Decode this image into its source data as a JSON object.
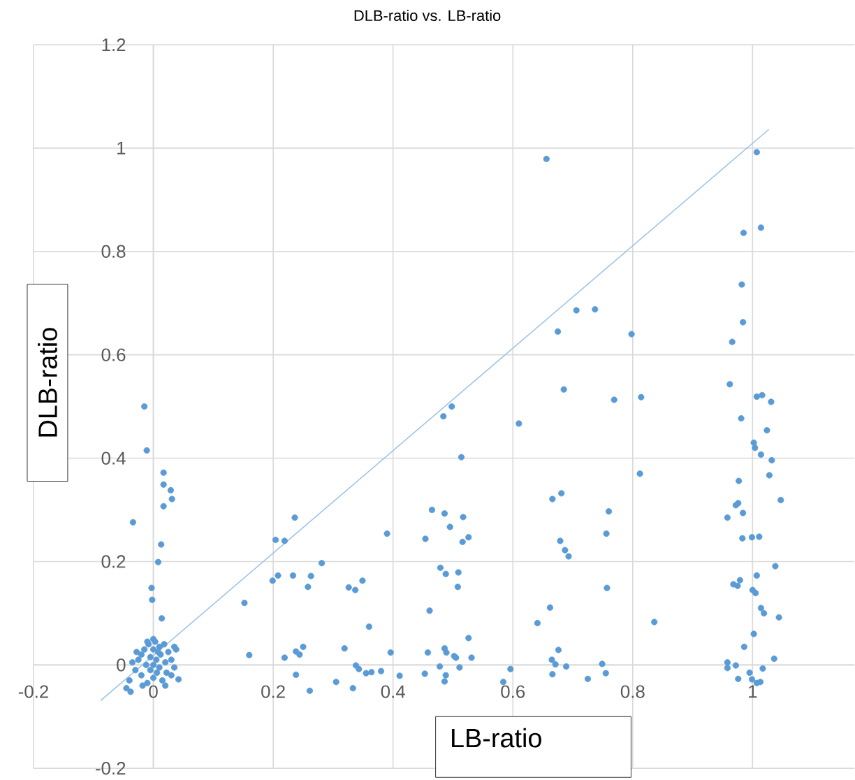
{
  "chart_data": {
    "type": "scatter",
    "title": "DLB-ratio vs. LB-ratio",
    "xlabel": "LB-ratio",
    "ylabel": "DLB-ratio",
    "xlim": [
      -0.2,
      1.17
    ],
    "ylim": [
      -0.2,
      1.2
    ],
    "xticks": [
      -0.2,
      0,
      0.2,
      0.4,
      0.6,
      0.8,
      1
    ],
    "yticks": [
      -0.2,
      0,
      0.2,
      0.4,
      0.6,
      0.8,
      1,
      1.2
    ],
    "grid": true,
    "series": [
      {
        "marker": "circle",
        "color": "#5b9bd5",
        "x": [
          -0.04,
          -0.045,
          -0.038,
          -0.03,
          -0.025,
          -0.02,
          -0.02,
          -0.015,
          -0.012,
          -0.01,
          -0.008,
          -0.005,
          -0.005,
          0.0,
          0.0,
          0.0,
          0.003,
          0.005,
          0.006,
          0.01,
          0.01,
          0.012,
          0.015,
          0.018,
          0.02,
          0.022,
          0.025,
          0.03,
          0.03,
          0.035,
          0.038,
          0.042,
          -0.035,
          -0.028,
          0.008,
          -0.018,
          0.02,
          0.0,
          -0.01,
          0.035,
          -0.015,
          -0.011,
          -0.034,
          0.017,
          0.017,
          0.029,
          0.031,
          0.017,
          0.013,
          0.008,
          -0.003,
          -0.002,
          0.014,
          0.152,
          0.16,
          0.199,
          0.208,
          0.204,
          0.219,
          0.236,
          0.219,
          0.233,
          0.263,
          0.258,
          0.281,
          0.238,
          0.244,
          0.25,
          0.238,
          0.261,
          0.305,
          0.319,
          0.326,
          0.337,
          0.333,
          0.39,
          0.349,
          0.36,
          0.338,
          0.343,
          0.355,
          0.364,
          0.38,
          0.396,
          0.411,
          0.465,
          0.486,
          0.495,
          0.517,
          0.454,
          0.516,
          0.526,
          0.479,
          0.488,
          0.509,
          0.508,
          0.461,
          0.526,
          0.458,
          0.486,
          0.489,
          0.502,
          0.505,
          0.531,
          0.478,
          0.511,
          0.453,
          0.488,
          0.486,
          0.584,
          0.596,
          0.484,
          0.498,
          0.514,
          0.61,
          0.666,
          0.681,
          0.679,
          0.687,
          0.693,
          0.662,
          0.641,
          0.676,
          0.665,
          0.671,
          0.689,
          0.666,
          0.769,
          0.814,
          0.76,
          0.756,
          0.812,
          0.757,
          0.836,
          0.749,
          0.725,
          0.755,
          0.656,
          0.706,
          0.737,
          0.675,
          0.798,
          0.685,
          0.962,
          0.981,
          1.007,
          1.016,
          1.031,
          1.024,
          1.002,
          1.004,
          1.014,
          1.032,
          1.028,
          0.977,
          1.047,
          0.972,
          0.976,
          0.958,
          0.984,
          0.983,
          0.999,
          1.011,
          1.038,
          1.007,
          0.968,
          0.975,
          0.979,
          1.0,
          1.005,
          1.014,
          1.019,
          1.044,
          1.002,
          0.986,
          1.036,
          0.958,
          0.972,
          0.958,
          1.017,
          0.995,
          0.976,
          0.999,
          1.007,
          1.013,
          1.007,
          0.985,
          1.014,
          0.982,
          0.984,
          0.966
        ],
        "values": [
          -0.03,
          -0.045,
          -0.052,
          -0.01,
          0.01,
          0.02,
          -0.02,
          0.03,
          0.0,
          -0.035,
          0.04,
          0.015,
          -0.01,
          0.03,
          0.0,
          -0.025,
          0.045,
          0.01,
          -0.015,
          0.035,
          -0.005,
          0.02,
          -0.03,
          0.04,
          0.005,
          -0.015,
          0.025,
          0.01,
          -0.02,
          0.035,
          0.03,
          -0.028,
          0.005,
          0.025,
          0.025,
          -0.04,
          -0.04,
          0.05,
          0.045,
          -0.005,
          0.5,
          0.415,
          0.276,
          0.372,
          0.349,
          0.338,
          0.321,
          0.307,
          0.233,
          0.199,
          0.149,
          0.126,
          0.09,
          0.12,
          0.019,
          0.163,
          0.173,
          0.242,
          0.24,
          0.285,
          0.014,
          0.173,
          0.172,
          0.151,
          0.197,
          0.026,
          0.02,
          0.035,
          -0.019,
          -0.05,
          -0.033,
          0.032,
          0.15,
          0.145,
          -0.045,
          0.254,
          0.163,
          0.074,
          -0.001,
          -0.008,
          -0.016,
          -0.014,
          -0.012,
          0.024,
          -0.021,
          0.3,
          0.293,
          0.267,
          0.286,
          0.244,
          0.238,
          0.247,
          0.188,
          0.176,
          0.179,
          0.151,
          0.105,
          0.052,
          0.024,
          0.032,
          0.024,
          0.017,
          0.014,
          0.014,
          -0.003,
          -0.005,
          -0.017,
          -0.02,
          -0.032,
          -0.033,
          -0.008,
          0.481,
          0.5,
          0.402,
          0.467,
          0.321,
          0.332,
          0.24,
          0.222,
          0.21,
          0.111,
          0.081,
          0.029,
          0.01,
          0.001,
          -0.003,
          -0.018,
          0.513,
          0.518,
          0.297,
          0.254,
          0.37,
          0.149,
          0.083,
          0.002,
          -0.027,
          -0.016,
          0.979,
          0.686,
          0.688,
          0.645,
          0.64,
          0.533,
          0.543,
          0.477,
          0.519,
          0.522,
          0.509,
          0.454,
          0.43,
          0.42,
          0.407,
          0.396,
          0.367,
          0.356,
          0.319,
          0.309,
          0.313,
          0.285,
          0.294,
          0.245,
          0.247,
          0.248,
          0.191,
          0.173,
          0.156,
          0.153,
          0.164,
          0.145,
          0.139,
          0.11,
          0.1,
          0.092,
          0.06,
          0.035,
          0.012,
          0.005,
          -0.001,
          -0.006,
          -0.007,
          -0.015,
          -0.027,
          -0.028,
          -0.035,
          -0.033,
          0.992,
          0.836,
          0.846,
          0.736,
          0.663,
          0.625
        ]
      },
      {
        "type": "line",
        "color": "#9dc3e6",
        "x": [
          -0.088,
          1.027
        ],
        "values": [
          -0.069,
          1.036
        ]
      }
    ]
  }
}
